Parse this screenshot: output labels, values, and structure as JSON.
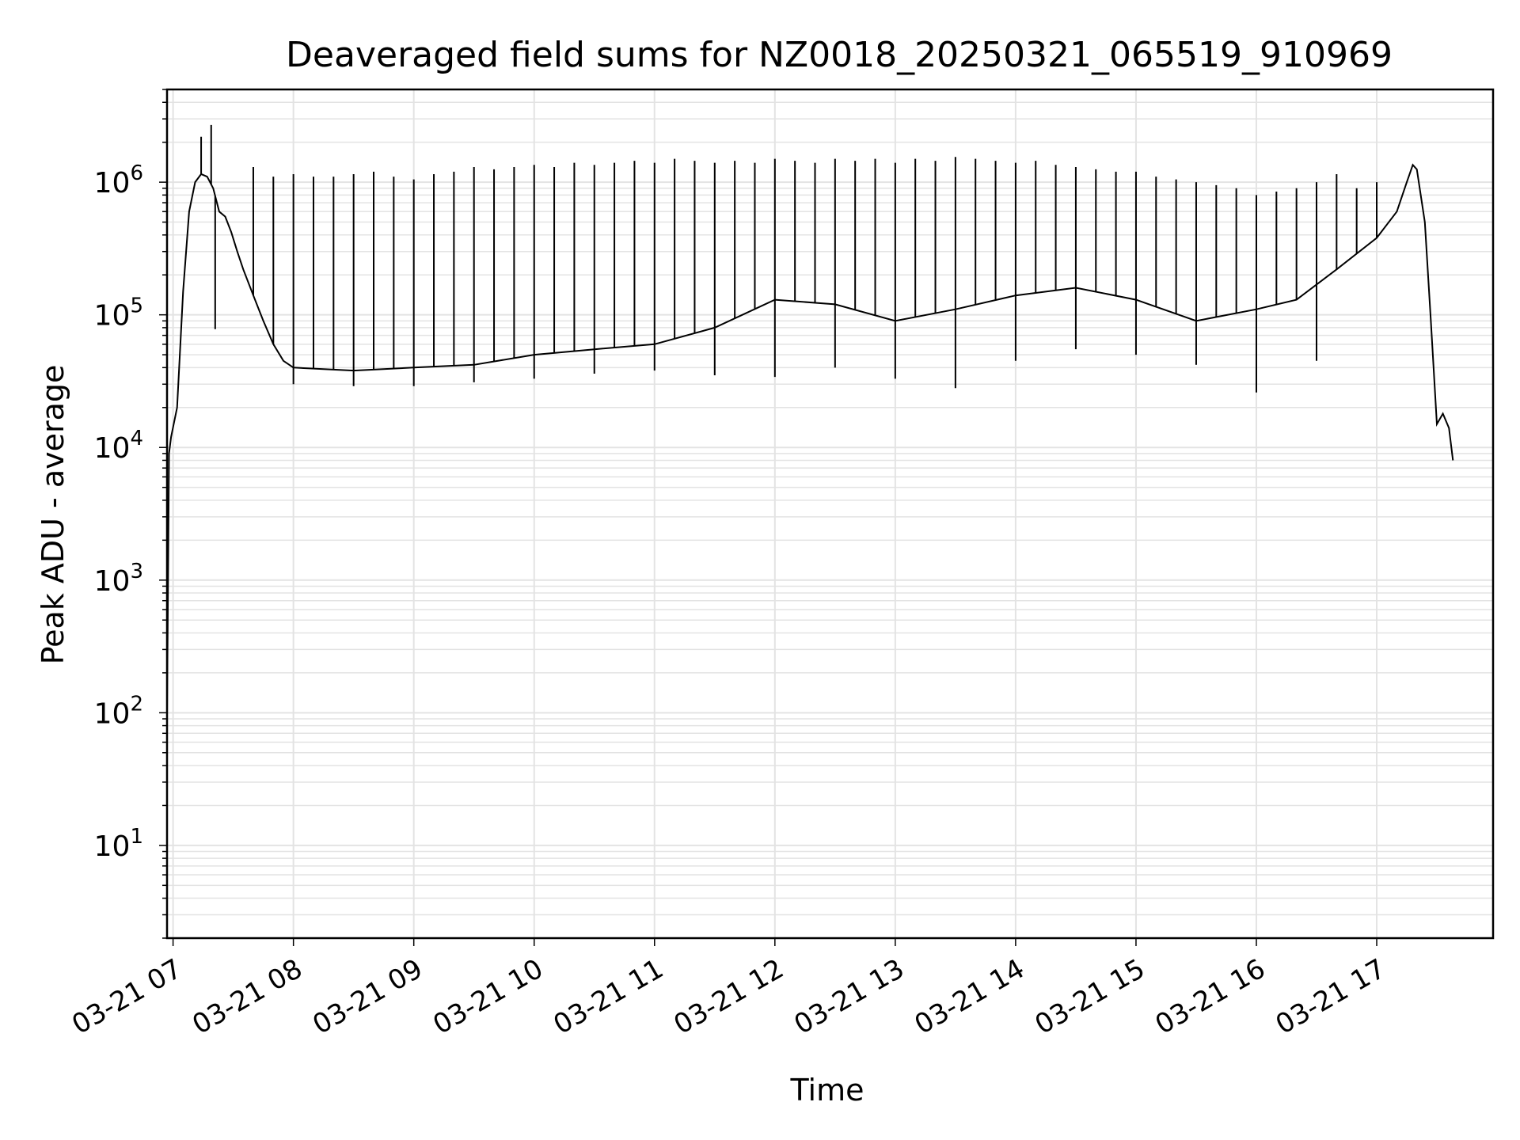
{
  "chart_data": {
    "type": "line",
    "title": "Deaveraged field sums for NZ0018_20250321_065519_910969",
    "xlabel": "Time",
    "ylabel": "Peak ADU - average",
    "yscale": "log",
    "ylim": [
      2,
      5000000
    ],
    "xlim": [
      "03-21 06:57",
      "03-21 17:58"
    ],
    "grid": true,
    "legend": "none",
    "line_color": "#000000",
    "grid_color": "#e3e3e3",
    "x_ticks": [
      {
        "label": "03-21 07",
        "time": "03-21 07:00"
      },
      {
        "label": "03-21 08",
        "time": "03-21 08:00"
      },
      {
        "label": "03-21 09",
        "time": "03-21 09:00"
      },
      {
        "label": "03-21 10",
        "time": "03-21 10:00"
      },
      {
        "label": "03-21 11",
        "time": "03-21 11:00"
      },
      {
        "label": "03-21 12",
        "time": "03-21 12:00"
      },
      {
        "label": "03-21 13",
        "time": "03-21 13:00"
      },
      {
        "label": "03-21 14",
        "time": "03-21 14:00"
      },
      {
        "label": "03-21 15",
        "time": "03-21 15:00"
      },
      {
        "label": "03-21 16",
        "time": "03-21 16:00"
      },
      {
        "label": "03-21 17",
        "time": "03-21 17:00"
      }
    ],
    "y_ticks": [
      {
        "base": "10",
        "exp": "1",
        "value": 10
      },
      {
        "base": "10",
        "exp": "2",
        "value": 100
      },
      {
        "base": "10",
        "exp": "3",
        "value": 1000
      },
      {
        "base": "10",
        "exp": "4",
        "value": 10000
      },
      {
        "base": "10",
        "exp": "5",
        "value": 100000
      },
      {
        "base": "10",
        "exp": "6",
        "value": 1000000
      }
    ],
    "series": [
      {
        "points": [
          [
            "03-21 06:57",
            100
          ],
          [
            "03-21 06:58",
            9000
          ],
          [
            "03-21 06:59",
            12000
          ],
          [
            "03-21 07:02",
            20000
          ],
          [
            "03-21 07:05",
            150000
          ],
          [
            "03-21 07:08",
            600000
          ],
          [
            "03-21 07:11",
            1000000
          ],
          [
            "03-21 07:14",
            1150000
          ],
          [
            "03-21 07:17",
            1100000
          ],
          [
            "03-21 07:20",
            900000
          ],
          [
            "03-21 07:23",
            600000
          ],
          [
            "03-21 07:26",
            550000
          ],
          [
            "03-21 07:29",
            420000
          ],
          [
            "03-21 07:32",
            300000
          ],
          [
            "03-21 07:35",
            220000
          ],
          [
            "03-21 07:40",
            140000
          ],
          [
            "03-21 07:45",
            90000
          ],
          [
            "03-21 07:50",
            60000
          ],
          [
            "03-21 07:55",
            45000
          ],
          [
            "03-21 08:00",
            40000
          ],
          [
            "03-21 08:30",
            38000
          ],
          [
            "03-21 09:00",
            40000
          ],
          [
            "03-21 09:30",
            42000
          ],
          [
            "03-21 10:00",
            50000
          ],
          [
            "03-21 10:30",
            55000
          ],
          [
            "03-21 11:00",
            60000
          ],
          [
            "03-21 11:30",
            80000
          ],
          [
            "03-21 12:00",
            130000
          ],
          [
            "03-21 12:30",
            120000
          ],
          [
            "03-21 13:00",
            90000
          ],
          [
            "03-21 13:30",
            110000
          ],
          [
            "03-21 14:00",
            140000
          ],
          [
            "03-21 14:30",
            160000
          ],
          [
            "03-21 15:00",
            130000
          ],
          [
            "03-21 15:30",
            90000
          ],
          [
            "03-21 16:00",
            110000
          ],
          [
            "03-21 16:20",
            130000
          ],
          [
            "03-21 16:40",
            220000
          ],
          [
            "03-21 17:00",
            380000
          ],
          [
            "03-21 17:10",
            600000
          ],
          [
            "03-21 17:15",
            1000000
          ],
          [
            "03-21 17:18",
            1350000
          ],
          [
            "03-21 17:20",
            1250000
          ],
          [
            "03-21 17:24",
            500000
          ],
          [
            "03-21 17:27",
            90000
          ],
          [
            "03-21 17:30",
            15000
          ],
          [
            "03-21 17:33",
            18000
          ],
          [
            "03-21 17:36",
            14000
          ],
          [
            "03-21 17:38",
            8000
          ]
        ],
        "spikes": [
          [
            "03-21 07:14",
            2200000
          ],
          [
            "03-21 07:19",
            2700000
          ],
          [
            "03-21 07:21",
            78000
          ],
          [
            "03-21 07:40",
            1300000
          ],
          [
            "03-21 07:50",
            1100000
          ],
          [
            "03-21 08:00",
            1150000
          ],
          [
            "03-21 08:10",
            1100000
          ],
          [
            "03-21 08:20",
            1100000
          ],
          [
            "03-21 08:30",
            1150000
          ],
          [
            "03-21 08:40",
            1200000
          ],
          [
            "03-21 08:50",
            1100000
          ],
          [
            "03-21 09:00",
            1050000
          ],
          [
            "03-21 09:10",
            1150000
          ],
          [
            "03-21 09:20",
            1200000
          ],
          [
            "03-21 09:30",
            1300000
          ],
          [
            "03-21 09:40",
            1250000
          ],
          [
            "03-21 09:50",
            1300000
          ],
          [
            "03-21 10:00",
            1350000
          ],
          [
            "03-21 10:10",
            1300000
          ],
          [
            "03-21 10:20",
            1400000
          ],
          [
            "03-21 10:30",
            1350000
          ],
          [
            "03-21 10:40",
            1400000
          ],
          [
            "03-21 10:50",
            1450000
          ],
          [
            "03-21 11:00",
            1400000
          ],
          [
            "03-21 11:10",
            1500000
          ],
          [
            "03-21 11:20",
            1450000
          ],
          [
            "03-21 11:30",
            1400000
          ],
          [
            "03-21 11:40",
            1450000
          ],
          [
            "03-21 11:50",
            1400000
          ],
          [
            "03-21 12:00",
            1500000
          ],
          [
            "03-21 12:10",
            1450000
          ],
          [
            "03-21 12:20",
            1400000
          ],
          [
            "03-21 12:30",
            1500000
          ],
          [
            "03-21 12:40",
            1450000
          ],
          [
            "03-21 12:50",
            1500000
          ],
          [
            "03-21 13:00",
            1400000
          ],
          [
            "03-21 13:10",
            1500000
          ],
          [
            "03-21 13:20",
            1450000
          ],
          [
            "03-21 13:30",
            1550000
          ],
          [
            "03-21 13:40",
            1500000
          ],
          [
            "03-21 13:50",
            1450000
          ],
          [
            "03-21 14:00",
            1400000
          ],
          [
            "03-21 14:10",
            1450000
          ],
          [
            "03-21 14:20",
            1350000
          ],
          [
            "03-21 14:30",
            1300000
          ],
          [
            "03-21 14:40",
            1250000
          ],
          [
            "03-21 14:50",
            1200000
          ],
          [
            "03-21 15:00",
            1200000
          ],
          [
            "03-21 15:10",
            1100000
          ],
          [
            "03-21 15:20",
            1050000
          ],
          [
            "03-21 15:30",
            1000000
          ],
          [
            "03-21 15:40",
            950000
          ],
          [
            "03-21 15:50",
            900000
          ],
          [
            "03-21 16:00",
            800000
          ],
          [
            "03-21 16:10",
            850000
          ],
          [
            "03-21 16:20",
            900000
          ],
          [
            "03-21 16:30",
            1000000
          ],
          [
            "03-21 16:40",
            1150000
          ],
          [
            "03-21 16:50",
            900000
          ],
          [
            "03-21 17:00",
            1000000
          ]
        ],
        "dips": [
          [
            "03-21 08:00",
            30000
          ],
          [
            "03-21 08:30",
            29000
          ],
          [
            "03-21 09:00",
            29000
          ],
          [
            "03-21 09:30",
            31000
          ],
          [
            "03-21 10:00",
            33000
          ],
          [
            "03-21 10:30",
            36000
          ],
          [
            "03-21 11:00",
            38000
          ],
          [
            "03-21 11:30",
            35000
          ],
          [
            "03-21 12:00",
            34000
          ],
          [
            "03-21 12:30",
            40000
          ],
          [
            "03-21 13:00",
            33000
          ],
          [
            "03-21 13:30",
            28000
          ],
          [
            "03-21 14:00",
            45000
          ],
          [
            "03-21 14:30",
            55000
          ],
          [
            "03-21 15:00",
            50000
          ],
          [
            "03-21 15:30",
            42000
          ],
          [
            "03-21 16:00",
            26000
          ],
          [
            "03-21 16:30",
            45000
          ]
        ]
      }
    ]
  }
}
